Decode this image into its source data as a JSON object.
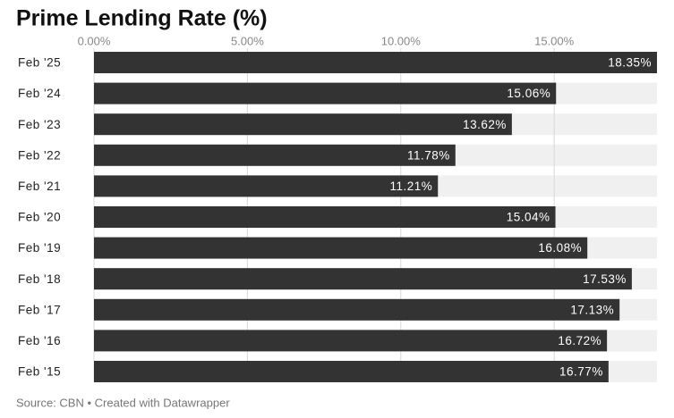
{
  "chart_data": {
    "type": "hbar",
    "title": "Prime Lending Rate (%)",
    "categories": [
      "Feb '25",
      "Feb '24",
      "Feb '23",
      "Feb '22",
      "Feb '21",
      "Feb '20",
      "Feb '19",
      "Feb '18",
      "Feb '17",
      "Feb '16",
      "Feb '15"
    ],
    "values": [
      18.35,
      15.06,
      13.62,
      11.78,
      11.21,
      15.04,
      16.08,
      17.53,
      17.13,
      16.72,
      16.77
    ],
    "value_labels": [
      "18.35%",
      "15.06%",
      "13.62%",
      "11.78%",
      "11.21%",
      "15.04%",
      "16.08%",
      "17.53%",
      "17.13%",
      "16.72%",
      "16.77%"
    ],
    "color": "#333333",
    "xlim": [
      0,
      18.35
    ],
    "xticks": [
      {
        "value": 0,
        "label": "0.00%"
      },
      {
        "value": 5,
        "label": "5.00%"
      },
      {
        "value": 10,
        "label": "10.00%"
      },
      {
        "value": 15,
        "label": "15.00%"
      }
    ],
    "grid": true,
    "source": "Source: CBN • Created with Datawrapper"
  }
}
